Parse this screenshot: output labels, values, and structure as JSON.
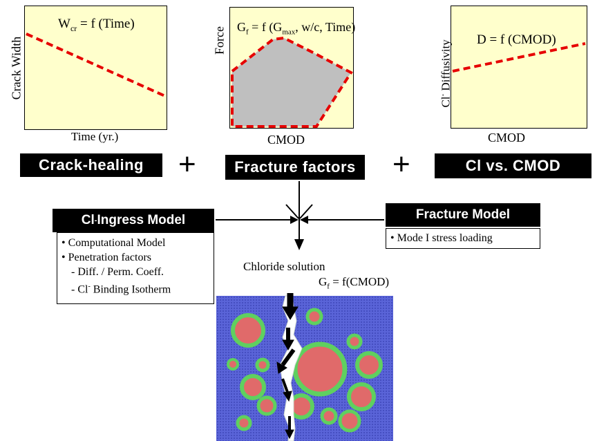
{
  "panels": {
    "crack_healing": {
      "ylabel": "Crack Width",
      "xlabel": "Time (yr.)",
      "formula_lhs": "W",
      "formula_sub": "cr",
      "formula_rhs": " = f (Time)"
    },
    "fracture": {
      "ylabel": "Force",
      "xlabel": "CMOD",
      "formula_lhs": "G",
      "formula_sub": "f",
      "formula_mid": " = f (G",
      "formula_sub2": "max",
      "formula_rhs": ", w/c, Time)"
    },
    "diffusivity": {
      "ylabel_pre": "Cl",
      "ylabel_sup": "-",
      "ylabel_post": " Diffusivity",
      "xlabel": "CMOD",
      "formula": "D = f (CMOD)"
    }
  },
  "factor_labels": {
    "crack_healing": "Crack-healing",
    "fracture_factors": "Fracture factors",
    "cl_vs_cmod": "Cl vs. CMOD",
    "plus": "+"
  },
  "ingress_model": {
    "title_pre": "Cl",
    "title_sup": "-",
    "title_post": " Ingress Model",
    "items": [
      "• Computational Model",
      "• Penetration factors",
      "- Diff. / Perm. Coeff."
    ],
    "binding_pre": "- Cl",
    "binding_sup": "-",
    "binding_post": " Binding Isotherm"
  },
  "fracture_model": {
    "title": "Fracture Model",
    "items": [
      "• Mode I stress loading"
    ]
  },
  "simulation": {
    "chloride_label": "Chloride solution",
    "gf_lhs": "G",
    "gf_sub": "f",
    "gf_rhs": " = f(CMOD)"
  },
  "colors": {
    "panel_bg": "#ffffcc",
    "dashed_line": "#e60000",
    "polygon_fill": "#bfbfbf",
    "matrix_blue": "#5a64d8",
    "aggregate_red": "#e06a6a",
    "itz_green": "#5fd05f"
  }
}
